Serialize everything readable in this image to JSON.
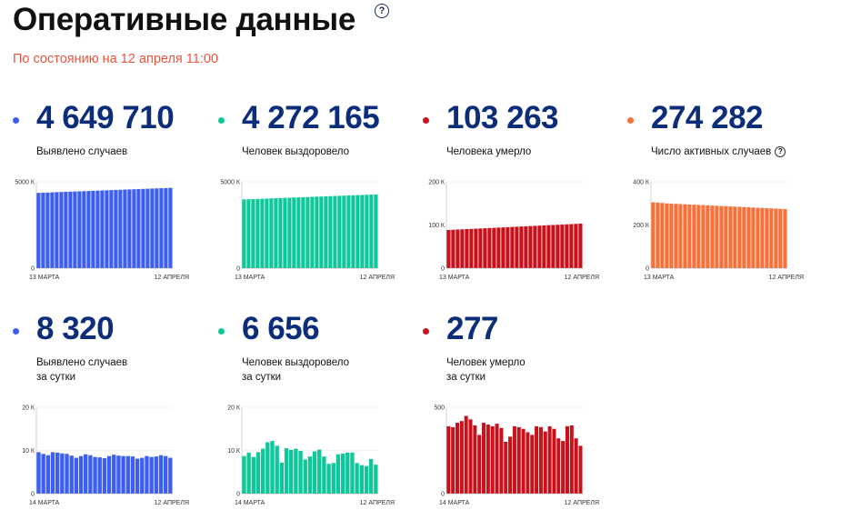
{
  "header": {
    "title": "Оперативные данные",
    "help_icon": "question-circle-icon",
    "subtitle": "По состоянию на 12 апреля 11:00"
  },
  "colors": {
    "blue": "#3d5ef2",
    "teal": "#0fc79b",
    "red": "#c8111a",
    "orange": "#f8703a",
    "number": "#0b2d7a",
    "subtitle": "#e9543f"
  },
  "cards": [
    {
      "id": "cases",
      "value": "4 649 710",
      "label": "Выявлено случаев",
      "label2": "",
      "dot_color": "#3d5ef2"
    },
    {
      "id": "recovered",
      "value": "4 272 165",
      "label": "Человек выздоровело",
      "label2": "",
      "dot_color": "#0fc79b"
    },
    {
      "id": "deaths",
      "value": "103 263",
      "label": "Человека умерло",
      "label2": "",
      "dot_color": "#c8111a"
    },
    {
      "id": "active",
      "value": "274 282",
      "label": "Число активных случаев",
      "label2": "",
      "dot_color": "#f8703a",
      "help_icon": "question-circle-icon"
    },
    {
      "id": "daily-cases",
      "value": "8 320",
      "label": "Выявлено случаев",
      "label2": "за сутки",
      "dot_color": "#3d5ef2"
    },
    {
      "id": "daily-recovered",
      "value": "6 656",
      "label": "Человек выздоровело",
      "label2": "за сутки",
      "dot_color": "#0fc79b"
    },
    {
      "id": "daily-deaths",
      "value": "277",
      "label": "Человек умерло",
      "label2": "за сутки",
      "dot_color": "#c8111a"
    }
  ],
  "chart_data": [
    {
      "type": "bar",
      "title": "",
      "x_start": "13 МАРТА",
      "x_end": "12 АПРЕЛЯ",
      "yticks": [
        0,
        5000
      ],
      "ytick_labels": [
        "0",
        "5000 К"
      ],
      "ylim": [
        0,
        5000
      ],
      "color": "#3d5ef2",
      "values": [
        4360,
        4370,
        4380,
        4390,
        4400,
        4410,
        4420,
        4430,
        4440,
        4450,
        4460,
        4470,
        4480,
        4490,
        4500,
        4510,
        4520,
        4530,
        4540,
        4550,
        4560,
        4570,
        4580,
        4590,
        4600,
        4610,
        4620,
        4630,
        4640,
        4650
      ]
    },
    {
      "type": "bar",
      "title": "",
      "x_start": "13 МАРТА",
      "x_end": "12 АПРЕЛЯ",
      "yticks": [
        0,
        5000
      ],
      "ytick_labels": [
        "0",
        "5000 К"
      ],
      "ylim": [
        0,
        5000
      ],
      "color": "#0fc79b",
      "values": [
        3980,
        3990,
        4000,
        4010,
        4020,
        4030,
        4040,
        4050,
        4060,
        4070,
        4080,
        4090,
        4100,
        4110,
        4120,
        4130,
        4140,
        4150,
        4160,
        4170,
        4180,
        4190,
        4200,
        4210,
        4220,
        4230,
        4240,
        4250,
        4260,
        4272
      ]
    },
    {
      "type": "bar",
      "title": "",
      "x_start": "13 МАРТА",
      "x_end": "12 АПРЕЛЯ",
      "yticks": [
        0,
        100,
        200
      ],
      "ytick_labels": [
        "0",
        "100 К",
        "200 К"
      ],
      "ylim": [
        0,
        200
      ],
      "color": "#c8111a",
      "values": [
        88.5,
        89,
        89.5,
        90,
        90.5,
        91,
        91.5,
        92,
        92.5,
        93,
        93.5,
        94,
        94.5,
        95,
        95.5,
        96,
        96.5,
        97,
        97.5,
        98,
        98.5,
        99,
        99.5,
        100,
        100.5,
        101,
        101.5,
        102,
        102.5,
        103.3
      ]
    },
    {
      "type": "bar",
      "title": "",
      "x_start": "13 МАРТА",
      "x_end": "12 АПРЕЛЯ",
      "yticks": [
        0,
        200,
        400
      ],
      "ytick_labels": [
        "0",
        "200 К",
        "400 К"
      ],
      "ylim": [
        0,
        400
      ],
      "color": "#f8703a",
      "values": [
        305,
        304,
        302,
        300,
        299,
        298,
        297,
        296,
        295,
        294,
        293,
        292,
        291,
        290,
        289,
        288,
        287,
        286,
        285,
        284,
        283,
        282,
        281,
        280,
        279,
        278,
        277,
        276,
        275,
        274
      ]
    },
    {
      "type": "bar",
      "title": "",
      "x_start": "14 МАРТА",
      "x_end": "12 АПРЕЛЯ",
      "yticks": [
        0,
        10,
        20
      ],
      "ytick_labels": [
        "0",
        "10 К",
        "20 К"
      ],
      "ylim": [
        0,
        20
      ],
      "color": "#3d5ef2",
      "values": [
        9.6,
        9.2,
        8.9,
        9.6,
        9.5,
        9.3,
        9.2,
        8.8,
        8.3,
        8.7,
        9.1,
        8.9,
        8.5,
        8.4,
        8.2,
        8.7,
        9.0,
        8.8,
        8.7,
        8.7,
        8.6,
        8.1,
        8.3,
        8.7,
        8.5,
        8.6,
        8.9,
        8.7,
        8.3
      ]
    },
    {
      "type": "bar",
      "title": "",
      "x_start": "14 МАРТА",
      "x_end": "12 АПРЕЛЯ",
      "yticks": [
        0,
        10,
        20
      ],
      "ytick_labels": [
        "0",
        "10 К",
        "20 К"
      ],
      "ylim": [
        0,
        20
      ],
      "color": "#0fc79b",
      "values": [
        8.7,
        9.5,
        8.5,
        9.6,
        10.4,
        11.9,
        12.2,
        11.1,
        7.2,
        10.5,
        10.1,
        10.4,
        9.9,
        7.9,
        8.6,
        9.8,
        10.2,
        8.6,
        6.9,
        7.1,
        9.1,
        9.3,
        9.5,
        9.5,
        7.1,
        6.6,
        6.4,
        8.0,
        6.7
      ]
    },
    {
      "type": "bar",
      "title": "",
      "x_start": "14 МАРТА",
      "x_end": "12 АПРЕЛЯ",
      "yticks": [
        0,
        500
      ],
      "ytick_labels": [
        "0",
        "500"
      ],
      "ylim": [
        0,
        500
      ],
      "color": "#c8111a",
      "values": [
        390,
        385,
        410,
        420,
        450,
        430,
        395,
        340,
        410,
        400,
        390,
        405,
        380,
        300,
        330,
        390,
        385,
        375,
        355,
        340,
        390,
        385,
        360,
        390,
        375,
        320,
        305,
        390,
        395,
        320,
        277
      ]
    }
  ]
}
